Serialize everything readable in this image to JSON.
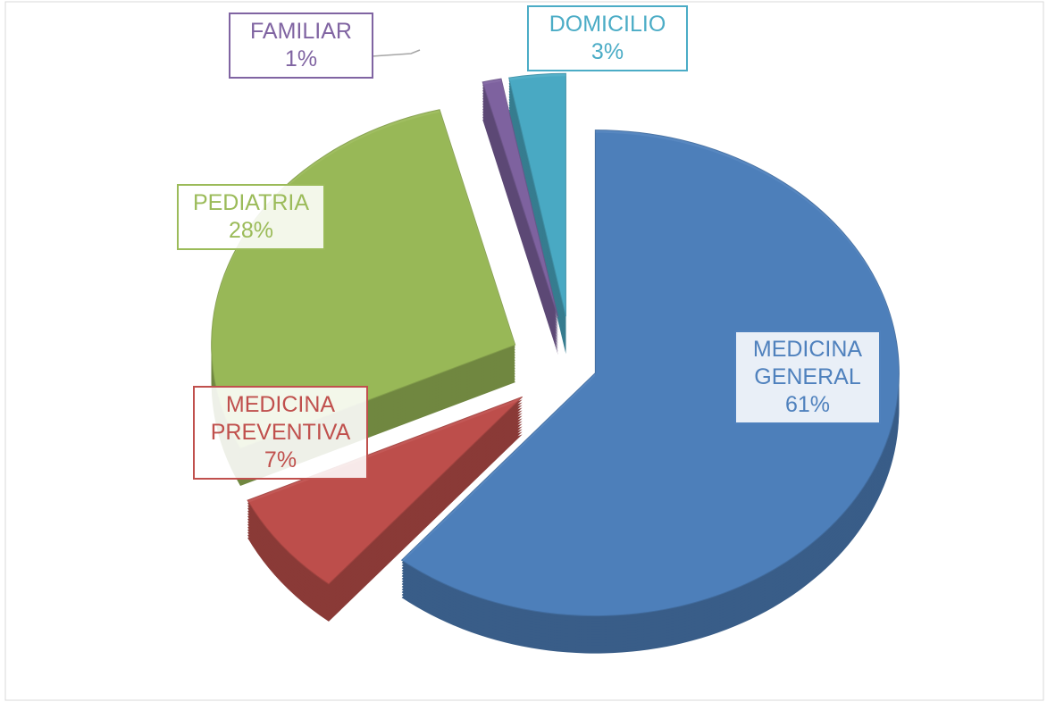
{
  "chart_data": {
    "type": "pie",
    "categories": [
      "MEDICINA GENERAL",
      "MEDICINA PREVENTIVA",
      "PEDIATRIA",
      "FAMILIAR",
      "DOMICILIO"
    ],
    "values": [
      61,
      7,
      28,
      1,
      3
    ],
    "value_labels": [
      "61%",
      "7%",
      "28%",
      "1%",
      "3%"
    ],
    "colors": [
      "#4f81bd",
      "#c0504d",
      "#9bbb59",
      "#8064a2",
      "#4bacc6"
    ]
  }
}
